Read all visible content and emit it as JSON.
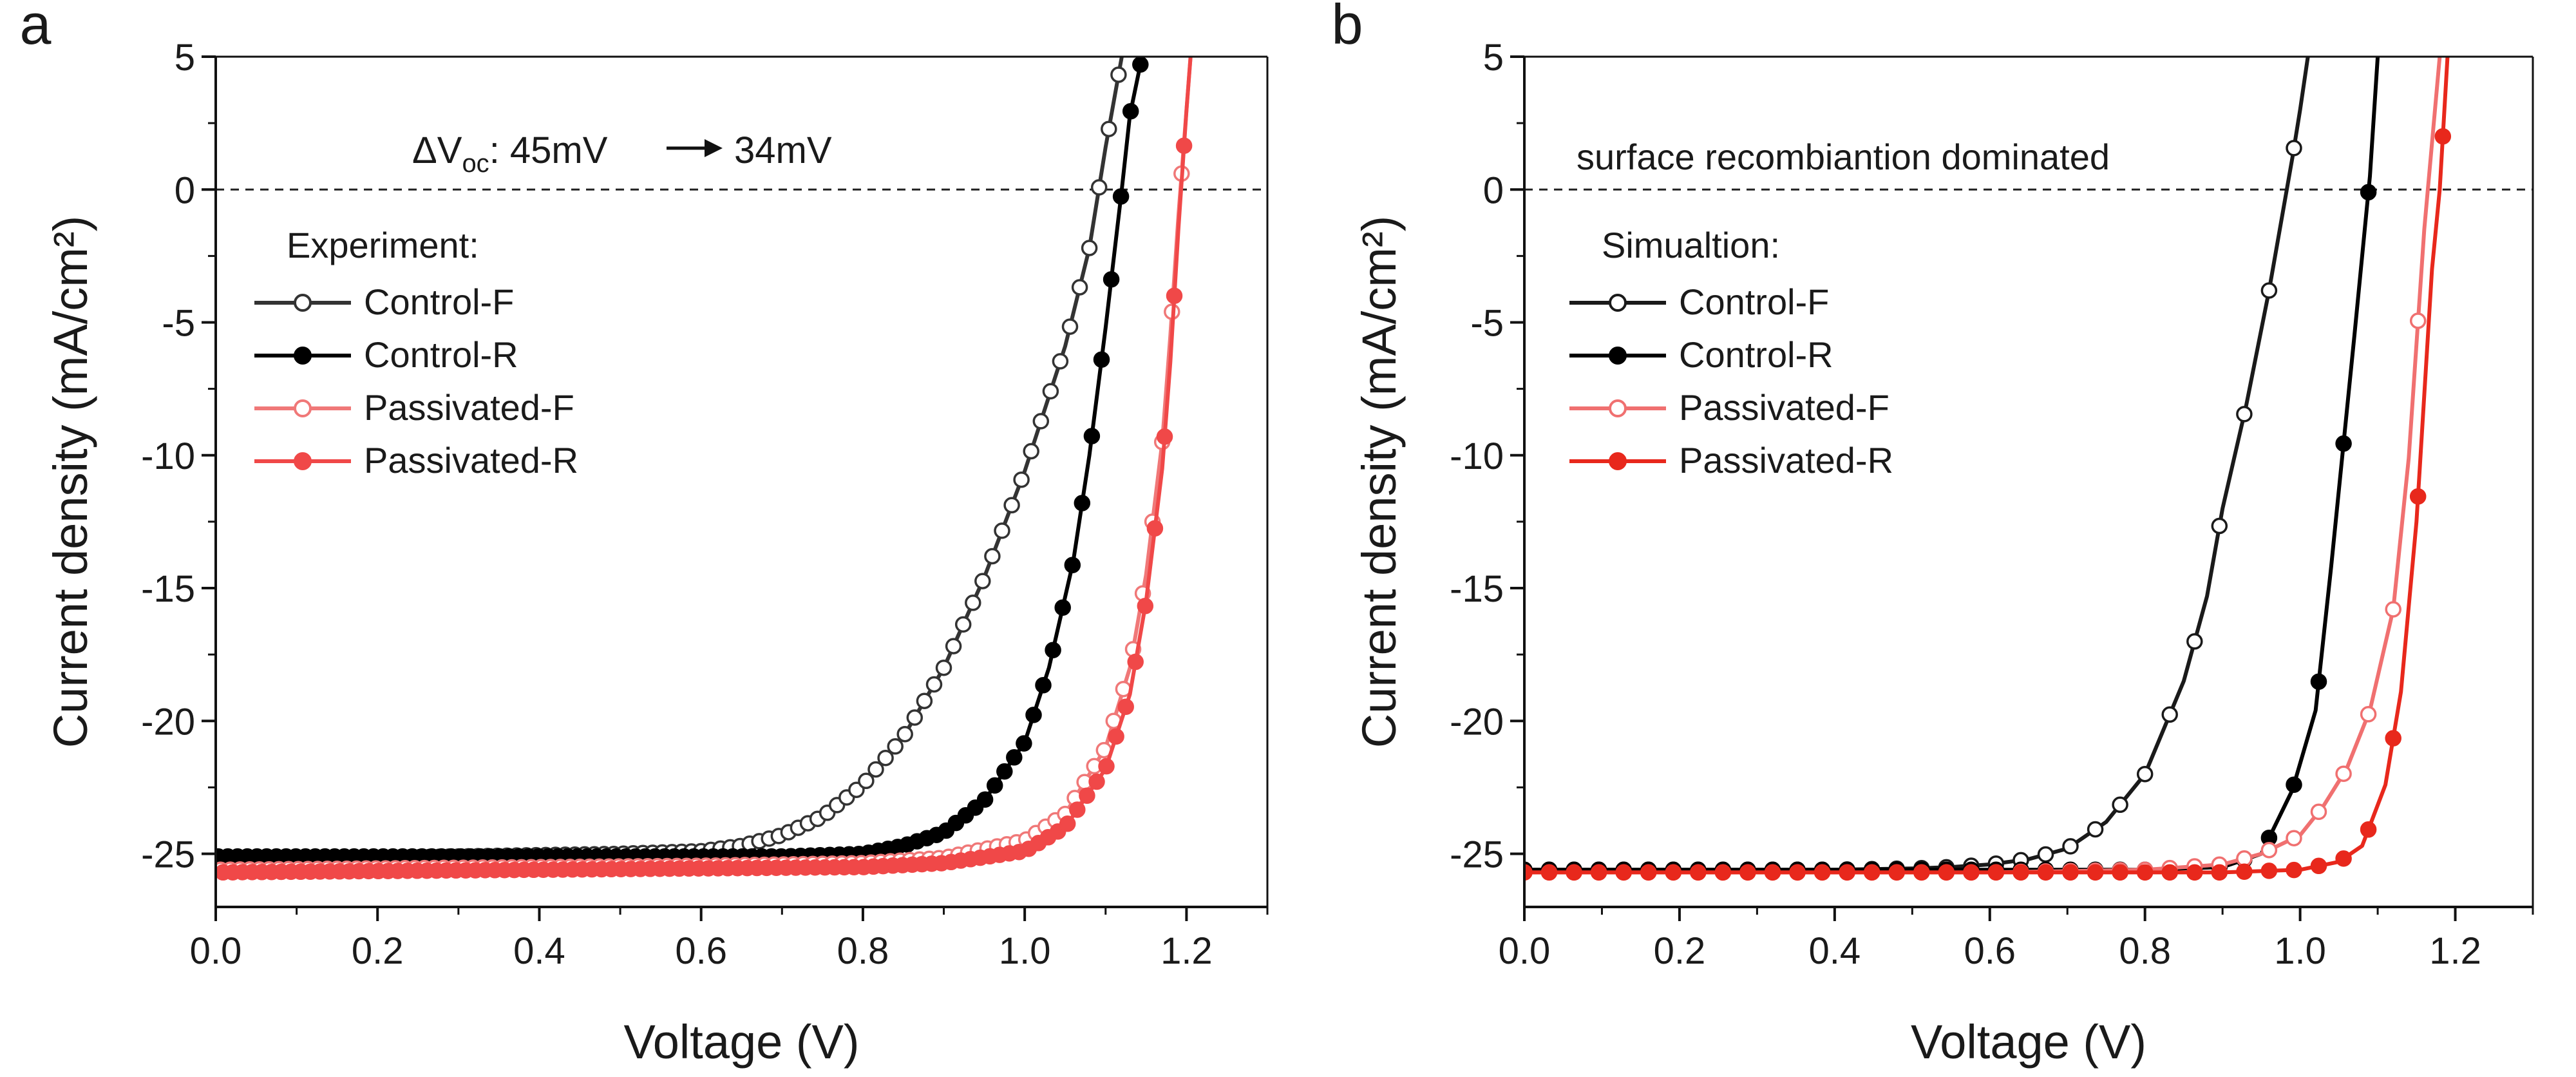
{
  "chart_data": [
    {
      "panel_label": "a",
      "type": "line",
      "xlabel": "Voltage (V)",
      "ylabel": "Current density (mA/cm²)",
      "xlim": [
        0,
        1.3
      ],
      "ylim": [
        -27,
        5
      ],
      "x_ticks": [
        "0.0",
        "0.2",
        "0.4",
        "0.6",
        "0.8",
        "1.0",
        "1.2"
      ],
      "y_ticks": [
        "5",
        "0",
        "-5",
        "-10",
        "-15",
        "-20",
        "-25"
      ],
      "zero_line": "dashed",
      "legend_title": "Experiment:",
      "legend_position": "upper-left",
      "annotation": {
        "prefix": "ΔV",
        "subscript": "oc",
        "before": ": 45mV",
        "after": "34mV"
      },
      "series": [
        {
          "name": "Control-F",
          "color": "#333333",
          "marker": "open",
          "points": [
            [
              0.0,
              -25.2
            ],
            [
              0.1,
              -25.2
            ],
            [
              0.2,
              -25.15
            ],
            [
              0.3,
              -25.1
            ],
            [
              0.4,
              -25.05
            ],
            [
              0.5,
              -25.0
            ],
            [
              0.55,
              -24.95
            ],
            [
              0.6,
              -24.9
            ],
            [
              0.65,
              -24.7
            ],
            [
              0.7,
              -24.3
            ],
            [
              0.75,
              -23.6
            ],
            [
              0.8,
              -22.4
            ],
            [
              0.85,
              -20.6
            ],
            [
              0.9,
              -18.0
            ],
            [
              0.95,
              -14.6
            ],
            [
              1.0,
              -10.6
            ],
            [
              1.05,
              -5.9
            ],
            [
              1.08,
              -2.2
            ],
            [
              1.1,
              1.6
            ],
            [
              1.12,
              5.0
            ]
          ]
        },
        {
          "name": "Control-R",
          "color": "#000000",
          "marker": "filled",
          "points": [
            [
              0.0,
              -25.1
            ],
            [
              0.2,
              -25.1
            ],
            [
              0.4,
              -25.1
            ],
            [
              0.6,
              -25.1
            ],
            [
              0.7,
              -25.1
            ],
            [
              0.8,
              -25.0
            ],
            [
              0.85,
              -24.7
            ],
            [
              0.9,
              -24.2
            ],
            [
              0.95,
              -23.0
            ],
            [
              1.0,
              -20.8
            ],
            [
              1.03,
              -18.0
            ],
            [
              1.06,
              -14.0
            ],
            [
              1.08,
              -10.0
            ],
            [
              1.1,
              -5.2
            ],
            [
              1.12,
              0.0
            ],
            [
              1.13,
              2.8
            ],
            [
              1.145,
              5.0
            ]
          ]
        },
        {
          "name": "Passivated-F",
          "color": "#f07878",
          "marker": "open",
          "points": [
            [
              0.0,
              -25.6
            ],
            [
              0.2,
              -25.55
            ],
            [
              0.4,
              -25.5
            ],
            [
              0.6,
              -25.45
            ],
            [
              0.8,
              -25.35
            ],
            [
              0.9,
              -25.15
            ],
            [
              1.0,
              -24.5
            ],
            [
              1.05,
              -23.5
            ],
            [
              1.1,
              -21.0
            ],
            [
              1.13,
              -18.0
            ],
            [
              1.15,
              -14.5
            ],
            [
              1.17,
              -9.5
            ],
            [
              1.18,
              -5.5
            ],
            [
              1.19,
              -1.0
            ],
            [
              1.2,
              3.0
            ],
            [
              1.205,
              5.0
            ]
          ]
        },
        {
          "name": "Passivated-R",
          "color": "#f04848",
          "marker": "filled",
          "points": [
            [
              0.0,
              -25.7
            ],
            [
              0.2,
              -25.65
            ],
            [
              0.4,
              -25.6
            ],
            [
              0.6,
              -25.55
            ],
            [
              0.8,
              -25.5
            ],
            [
              0.9,
              -25.35
            ],
            [
              1.0,
              -24.9
            ],
            [
              1.05,
              -24.0
            ],
            [
              1.1,
              -21.8
            ],
            [
              1.13,
              -19.0
            ],
            [
              1.15,
              -15.5
            ],
            [
              1.17,
              -10.5
            ],
            [
              1.18,
              -6.5
            ],
            [
              1.19,
              -1.5
            ],
            [
              1.2,
              3.0
            ],
            [
              1.205,
              5.0
            ]
          ]
        }
      ]
    },
    {
      "panel_label": "b",
      "type": "line",
      "xlabel": "Voltage (V)",
      "ylabel": "Current density (mA/cm²)",
      "xlim": [
        0,
        1.3
      ],
      "ylim": [
        -27,
        5
      ],
      "x_ticks": [
        "0.0",
        "0.2",
        "0.4",
        "0.6",
        "0.8",
        "1.0",
        "1.2"
      ],
      "y_ticks": [
        "5",
        "0",
        "-5",
        "-10",
        "-15",
        "-20",
        "-25"
      ],
      "zero_line": "dashed",
      "legend_title": "Simualtion:",
      "legend_position": "upper-left",
      "annotation_text": "surface recombiantion dominated",
      "series": [
        {
          "name": "Control-F",
          "color": "#1a1a1a",
          "marker": "open",
          "points": [
            [
              0.0,
              -25.6
            ],
            [
              0.1,
              -25.6
            ],
            [
              0.2,
              -25.6
            ],
            [
              0.3,
              -25.6
            ],
            [
              0.4,
              -25.6
            ],
            [
              0.5,
              -25.55
            ],
            [
              0.55,
              -25.5
            ],
            [
              0.6,
              -25.4
            ],
            [
              0.65,
              -25.2
            ],
            [
              0.7,
              -24.8
            ],
            [
              0.75,
              -23.8
            ],
            [
              0.8,
              -22.0
            ],
            [
              0.85,
              -18.5
            ],
            [
              0.88,
              -15.3
            ],
            [
              0.9,
              -12.0
            ],
            [
              0.93,
              -8.2
            ],
            [
              0.96,
              -3.8
            ],
            [
              0.99,
              1.2
            ],
            [
              1.0,
              3.0
            ],
            [
              1.01,
              5.0
            ]
          ]
        },
        {
          "name": "Control-R",
          "color": "#000000",
          "marker": "filled",
          "points": [
            [
              0.0,
              -25.6
            ],
            [
              0.2,
              -25.6
            ],
            [
              0.4,
              -25.6
            ],
            [
              0.6,
              -25.6
            ],
            [
              0.8,
              -25.6
            ],
            [
              0.9,
              -25.5
            ],
            [
              0.95,
              -25.0
            ],
            [
              0.99,
              -22.6
            ],
            [
              1.02,
              -19.6
            ],
            [
              1.04,
              -14.2
            ],
            [
              1.07,
              -5.5
            ],
            [
              1.09,
              0.5
            ],
            [
              1.1,
              5.0
            ]
          ]
        },
        {
          "name": "Passivated-F",
          "color": "#f07070",
          "marker": "open",
          "points": [
            [
              0.0,
              -25.7
            ],
            [
              0.2,
              -25.7
            ],
            [
              0.4,
              -25.7
            ],
            [
              0.6,
              -25.7
            ],
            [
              0.8,
              -25.6
            ],
            [
              0.9,
              -25.4
            ],
            [
              0.95,
              -25.0
            ],
            [
              1.0,
              -24.3
            ],
            [
              1.03,
              -23.2
            ],
            [
              1.06,
              -21.8
            ],
            [
              1.09,
              -19.6
            ],
            [
              1.12,
              -15.8
            ],
            [
              1.14,
              -10.1
            ],
            [
              1.16,
              -1.5
            ],
            [
              1.18,
              5.0
            ]
          ]
        },
        {
          "name": "Passivated-R",
          "color": "#e8281c",
          "marker": "filled",
          "points": [
            [
              0.0,
              -25.7
            ],
            [
              0.2,
              -25.7
            ],
            [
              0.4,
              -25.7
            ],
            [
              0.6,
              -25.7
            ],
            [
              0.8,
              -25.7
            ],
            [
              0.9,
              -25.7
            ],
            [
              1.0,
              -25.6
            ],
            [
              1.05,
              -25.3
            ],
            [
              1.08,
              -24.7
            ],
            [
              1.11,
              -22.4
            ],
            [
              1.13,
              -18.9
            ],
            [
              1.15,
              -12.5
            ],
            [
              1.17,
              -3.0
            ],
            [
              1.18,
              0.0
            ],
            [
              1.19,
              5.0
            ]
          ]
        }
      ]
    }
  ]
}
